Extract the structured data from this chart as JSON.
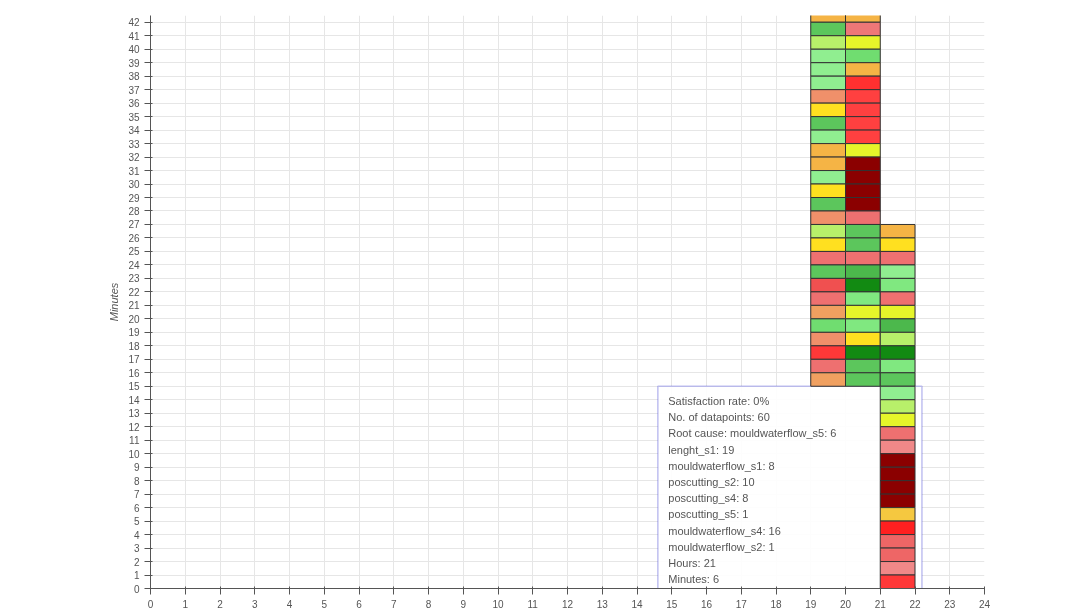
{
  "chart_data": {
    "type": "scatter",
    "ylabel": "Minutes",
    "marker": "square",
    "grid": true,
    "xlim": [
      0,
      24
    ],
    "ylim": [
      0,
      42.5
    ],
    "xticks": [
      0,
      1,
      2,
      3,
      4,
      5,
      6,
      7,
      8,
      9,
      10,
      11,
      12,
      13,
      14,
      15,
      16,
      17,
      18,
      19,
      20,
      21,
      22,
      23,
      24
    ],
    "yticks": [
      0,
      1,
      2,
      3,
      4,
      5,
      6,
      7,
      8,
      9,
      10,
      11,
      12,
      13,
      14,
      15,
      16,
      17,
      18,
      19,
      20,
      21,
      22,
      23,
      24,
      25,
      26,
      27,
      28,
      29,
      30,
      31,
      32,
      33,
      34,
      35,
      36,
      37,
      38,
      39,
      40,
      41,
      42
    ],
    "series": [
      {
        "x": [
          19.5,
          19.5,
          19.5,
          19.5,
          19.5,
          19.5,
          19.5,
          19.5,
          19.5,
          19.5,
          19.5,
          19.5,
          19.5,
          19.5,
          19.5,
          19.5,
          19.5,
          19.5,
          19.5,
          19.5,
          19.5,
          19.5,
          19.5,
          19.5,
          19.5,
          19.5,
          19.5,
          19.5
        ],
        "values": [
          42.5,
          41.5,
          40.5,
          39.5,
          38.5,
          37.5,
          36.5,
          35.5,
          34.5,
          33.5,
          32.5,
          31.5,
          30.5,
          29.5,
          28.5,
          27.5,
          26.5,
          25.5,
          24.5,
          23.5,
          22.5,
          21.5,
          20.5,
          19.5,
          18.5,
          17.5,
          16.5,
          15.5
        ],
        "colors": [
          "#f5b445",
          "#5cc65c",
          "#b8f06a",
          "#90ee90",
          "#90ee90",
          "#90ee90",
          "#f0906a",
          "#ffe020",
          "#5cc65c",
          "#90ee90",
          "#f5b445",
          "#f5b445",
          "#90ee90",
          "#ffe020",
          "#5cc65c",
          "#f0906a",
          "#b8f06a",
          "#ffe020",
          "#ee7070",
          "#5cc65c",
          "#f05050",
          "#ee7070",
          "#f0a060",
          "#70dd70",
          "#f0906a",
          "#ff3838",
          "#ee7070",
          "#f0a060"
        ]
      },
      {
        "x": [
          20.5,
          20.5,
          20.5,
          20.5,
          20.5,
          20.5,
          20.5,
          20.5,
          20.5,
          20.5,
          20.5,
          20.5,
          20.5,
          20.5,
          20.5,
          20.5,
          20.5,
          20.5,
          20.5,
          20.5,
          20.5,
          20.5,
          20.5,
          20.5,
          20.5,
          20.5,
          20.5,
          20.5
        ],
        "values": [
          42.5,
          41.5,
          40.5,
          39.5,
          38.5,
          37.5,
          36.5,
          35.5,
          34.5,
          33.5,
          32.5,
          31.5,
          30.5,
          29.5,
          28.5,
          27.5,
          26.5,
          25.5,
          24.5,
          23.5,
          22.5,
          21.5,
          20.5,
          19.5,
          18.5,
          17.5,
          16.5,
          15.5
        ],
        "colors": [
          "#f5b445",
          "#ee7777",
          "#e6f52a",
          "#70dd70",
          "#f5b445",
          "#ff3030",
          "#ff4040",
          "#ff4040",
          "#ff4040",
          "#ff4040",
          "#e6f52a",
          "#8b0000",
          "#8b0000",
          "#8b0000",
          "#8b0000",
          "#ee7070",
          "#5cc65c",
          "#5cc65c",
          "#ee7070",
          "#4cb84c",
          "#128a12",
          "#80e880",
          "#e6f52a",
          "#80e880",
          "#ffe020",
          "#128a12",
          "#5cc65c",
          "#5cc65c"
        ]
      },
      {
        "x": [
          21.5,
          21.5,
          21.5,
          21.5,
          21.5,
          21.5,
          21.5,
          21.5,
          21.5,
          21.5,
          21.5,
          21.5,
          21.5,
          21.5,
          21.5,
          21.5,
          21.5,
          21.5,
          21.5,
          21.5,
          21.5,
          21.5,
          21.5,
          21.5,
          21.5,
          21.5,
          21.5
        ],
        "values": [
          26.5,
          25.5,
          24.5,
          23.5,
          22.5,
          21.5,
          20.5,
          19.5,
          18.5,
          17.5,
          16.5,
          15.5,
          14.5,
          13.5,
          12.5,
          11.5,
          10.5,
          9.5,
          8.5,
          7.5,
          6.5,
          5.5,
          4.5,
          3.5,
          2.5,
          1.5,
          0.5
        ],
        "colors": [
          "#f5b445",
          "#ffe020",
          "#ee7070",
          "#90ee90",
          "#80e880",
          "#ee7070",
          "#e6f52a",
          "#4cb84c",
          "#b8f06a",
          "#128a12",
          "#80e880",
          "#5cc65c",
          "#90ee90",
          "#b8f06a",
          "#e6f52a",
          "#ee7070",
          "#f08888",
          "#8b0000",
          "#8b0000",
          "#8b0000",
          "#8b0000",
          "#f5c840",
          "#ff2020",
          "#ee6666",
          "#ee6666",
          "#f08888",
          "#ff3838"
        ]
      }
    ],
    "annotations": [
      "Satisfaction rate: 0%",
      "No. of datapoints: 60",
      "Root cause: mouldwaterflow_s5: 6",
      "lenght_s1: 19",
      "mouldwaterflow_s1: 8",
      "poscutting_s2: 10",
      "poscutting_s4: 8",
      "poscutting_s5: 1",
      "mouldwaterflow_s4: 16",
      "mouldwaterflow_s2: 1",
      "Hours: 21",
      "Minutes: 6"
    ]
  }
}
